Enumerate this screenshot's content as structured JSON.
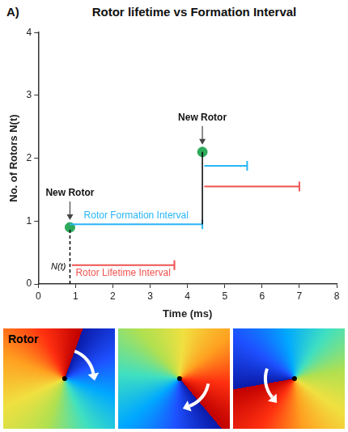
{
  "chart_data": {
    "type": "line",
    "panel_label": "A)",
    "title": "Rotor lifetime vs Formation Interval",
    "x_label": "Time (ms)",
    "y_label": "No. of Rotors N(t)",
    "xlim": [
      0,
      8
    ],
    "xticks": [
      0,
      1,
      2,
      3,
      4,
      5,
      6,
      7,
      8
    ],
    "ylim": [
      0,
      4
    ],
    "yticks": [
      0,
      1,
      2,
      3,
      4
    ],
    "grid": false,
    "series": [
      {
        "name": "N(t)",
        "type": "line",
        "color": "#000000",
        "line_style": "dashed",
        "x": [
          0.85,
          0.85
        ],
        "values": [
          0,
          0.9
        ]
      },
      {
        "type": "line",
        "color": "#000000",
        "line_style": "solid",
        "x": [
          4.4,
          4.4
        ],
        "values": [
          0.95,
          2.1
        ]
      },
      {
        "name": "Rotor Formation Interval",
        "type": "interval",
        "color": "#29b6f6",
        "segments": [
          {
            "x": [
              0.85,
              4.4
            ],
            "values": [
              0.95,
              0.95
            ]
          },
          {
            "x": [
              4.45,
              5.6
            ],
            "values": [
              1.88,
              1.88
            ]
          }
        ]
      },
      {
        "name": "Rotor Lifetime Interval",
        "type": "interval",
        "color": "#ef5350",
        "segments": [
          {
            "x": [
              0.9,
              3.65
            ],
            "values": [
              0.3,
              0.3
            ]
          },
          {
            "x": [
              4.45,
              7.0
            ],
            "values": [
              1.55,
              1.55
            ]
          }
        ]
      },
      {
        "name": "New Rotor",
        "type": "scatter",
        "color": "#2eaa5c",
        "marker": "circle",
        "x": [
          0.85,
          4.4
        ],
        "values": [
          0.9,
          2.1
        ]
      }
    ]
  },
  "images": {
    "caption": "Rotor"
  }
}
